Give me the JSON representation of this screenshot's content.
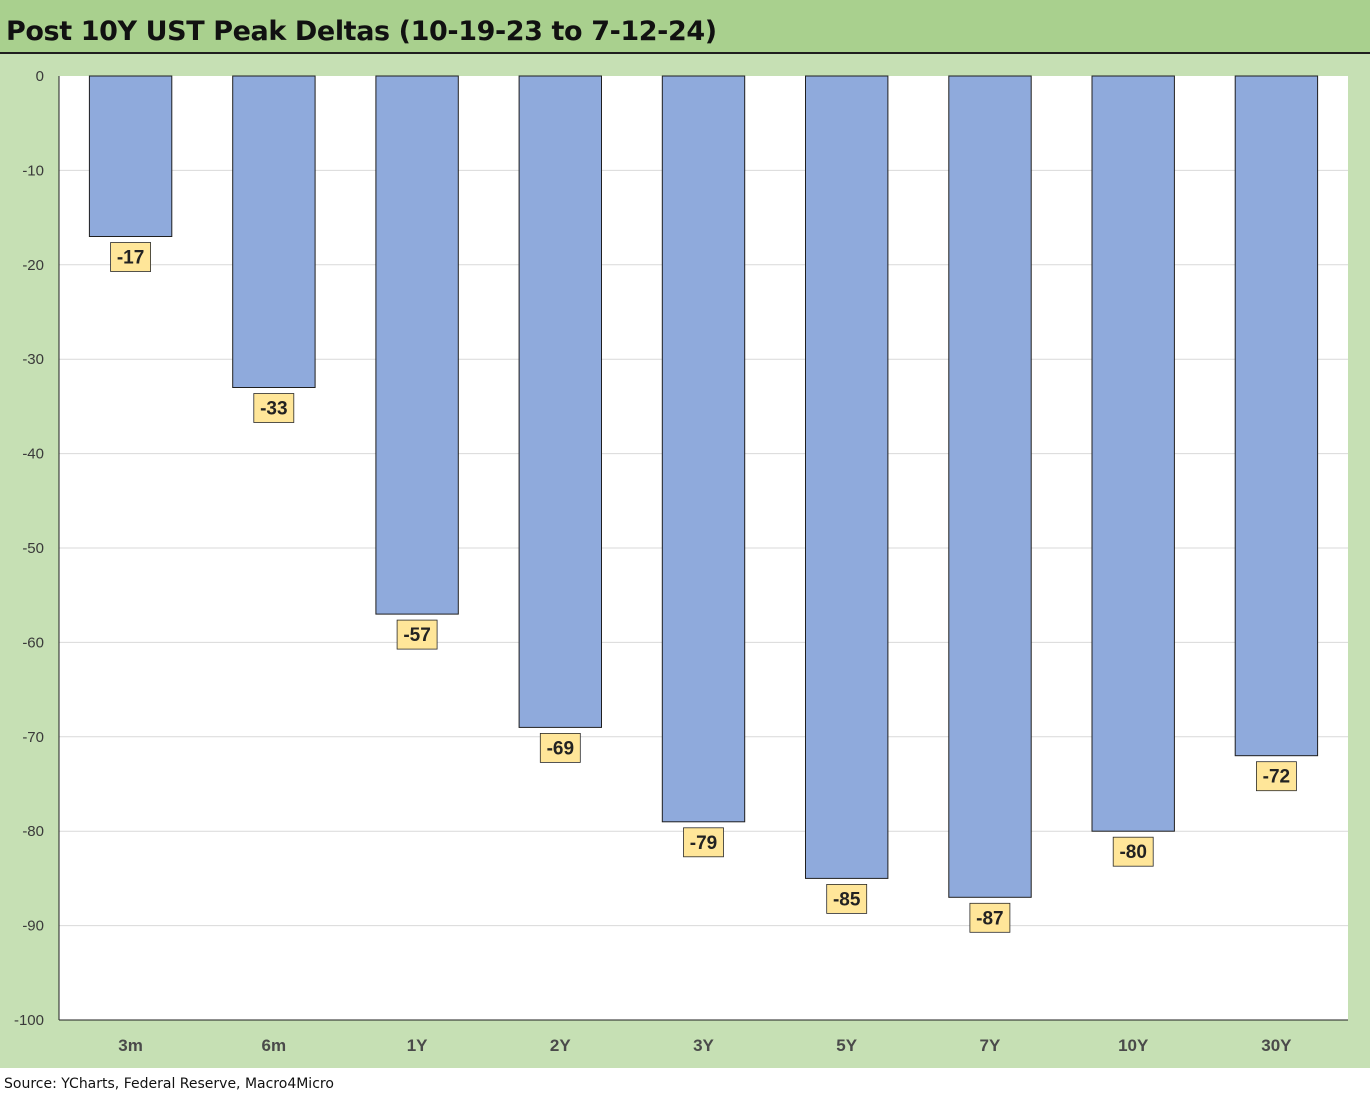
{
  "title": "Post 10Y UST Peak Deltas (10-19-23 to 7-12-24)",
  "source": "Source: YCharts, Federal Reserve, Macro4Micro",
  "colors": {
    "title_bg": "#a9d08e",
    "chart_bg": "#c6e0b4",
    "plot_bg": "#ffffff",
    "bar_fill": "#8faadc",
    "bar_stroke": "#1f1f1f",
    "label_bg": "#ffe699",
    "gridline": "#d9d9d9"
  },
  "chart_data": {
    "type": "bar",
    "title": "Post 10Y UST Peak Deltas (10-19-23 to 7-12-24)",
    "categories": [
      "3m",
      "6m",
      "1Y",
      "2Y",
      "3Y",
      "5Y",
      "7Y",
      "10Y",
      "30Y"
    ],
    "values": [
      -17,
      -33,
      -57,
      -69,
      -79,
      -85,
      -87,
      -80,
      -72
    ],
    "data_labels": [
      "-17",
      "-33",
      "-57",
      "-69",
      "-79",
      "-85",
      "-87",
      "-80",
      "-72"
    ],
    "ylim": [
      -100,
      0
    ],
    "yticks": [
      0,
      -10,
      -20,
      -30,
      -40,
      -50,
      -60,
      -70,
      -80,
      -90,
      -100
    ],
    "ytick_labels": [
      "0",
      "-10",
      "-20",
      "-30",
      "-40",
      "-50",
      "-60",
      "-70",
      "-80",
      "-90",
      "-100"
    ],
    "xlabel": "",
    "ylabel": "",
    "grid": true,
    "legend": "none"
  }
}
